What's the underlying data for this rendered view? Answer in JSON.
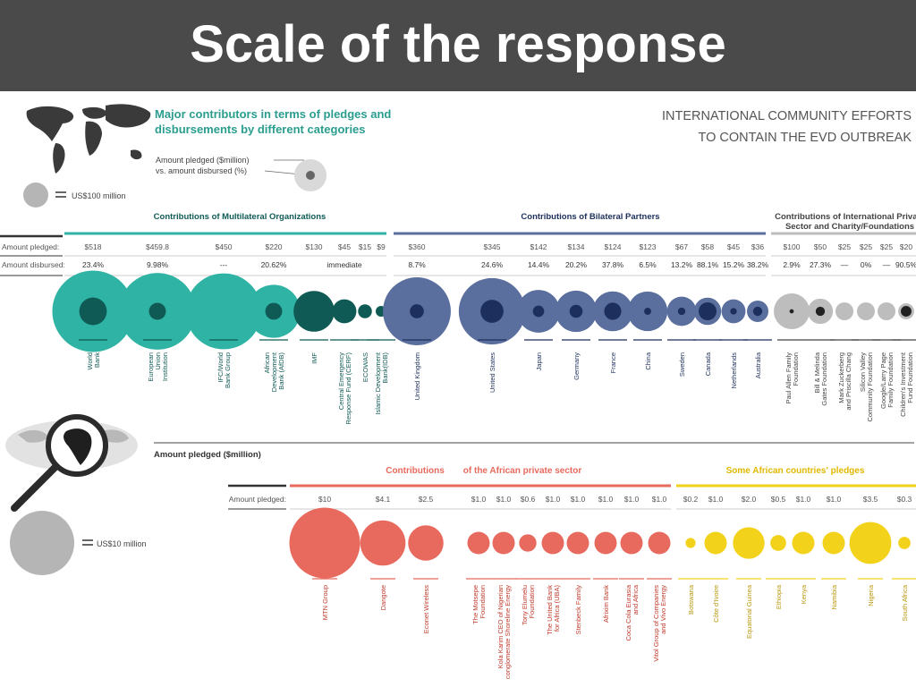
{
  "slide": {
    "title": "Scale of the response"
  },
  "colors": {
    "multilateral": "#2fb3a4",
    "multilateral_dark": "#0f5a55",
    "bilateral": "#5a6f9e",
    "bilateral_dark": "#1d2f5c",
    "private": "#bdbdbd",
    "african_private": "#e86a5e",
    "african_countries": "#f2d21a",
    "grey_label": "#555555"
  },
  "infographic": {
    "header_line1": "INTERNATIONAL COMMUNITY EFFORTS",
    "header_line2": "TO CONTAIN THE EVD OUTBREAK",
    "subtitle_line1": "Major contributors in terms of pledges and",
    "subtitle_line2": "disbursements by different categories",
    "legend_pledged": "Amount pledged ($million)",
    "legend_disbursed": "vs. amount disbursed (%)",
    "scale_top": "US$100 million",
    "scale_bottom": "US$10 million",
    "row_pledged": "Amount pledged:",
    "row_disbursed": "Amount disbursed:",
    "bottom_caption": "Amount pledged ($million)",
    "immediate": "immediate"
  },
  "chart_data": [
    {
      "type": "bubble",
      "title": "Contributions of Multilateral Organizations",
      "categories": [
        "World Bank",
        "European Union Institution",
        "IFC/World Bank Group",
        "African Development Bank (AfDB)",
        "IMF",
        "Central Emergency Response Fund (CERF)",
        "ECOWAS",
        "Islamic Development Bank(IDB)"
      ],
      "category_lines": [
        [
          "World",
          "Bank"
        ],
        [
          "European",
          "Union",
          "Institution"
        ],
        [
          "IFC/World",
          "Bank Group"
        ],
        [
          "African",
          "Development",
          "Bank (AfDB)"
        ],
        [
          "IMF"
        ],
        [
          "Central Emergency",
          "Response Fund (CERF)"
        ],
        [
          "ECOWAS"
        ],
        [
          "Islamic Development",
          "Bank(IDB)"
        ]
      ],
      "pledged_labels": [
        "$518",
        "$459.8",
        "$450",
        "$220",
        "$130",
        "$45",
        "$15",
        "$9"
      ],
      "pledged_musd": [
        518,
        459.8,
        450,
        220,
        130,
        45,
        15,
        9
      ],
      "disbursed_labels": [
        "23.4%",
        "9.98%",
        "---",
        "20.62%",
        "immediate",
        "",
        "",
        ""
      ],
      "disbursed_pct": [
        23.4,
        9.98,
        0,
        20.62,
        100,
        100,
        100,
        100
      ]
    },
    {
      "type": "bubble",
      "title": "Contributions of Bilateral Partners",
      "categories": [
        "United Kingdom",
        "United States",
        "Japan",
        "Germany",
        "France",
        "China",
        "Sweden",
        "Canada",
        "Netherlands",
        "Australia"
      ],
      "category_lines": [
        [
          "United Kingdom"
        ],
        [
          "United States"
        ],
        [
          "Japan"
        ],
        [
          "Germany"
        ],
        [
          "France"
        ],
        [
          "China"
        ],
        [
          "Sweden"
        ],
        [
          "Canada"
        ],
        [
          "Netherlands"
        ],
        [
          "Australia"
        ]
      ],
      "pledged_labels": [
        "$360",
        "$345",
        "$142",
        "$134",
        "$124",
        "$123",
        "$67",
        "$58",
        "$45",
        "$36"
      ],
      "pledged_musd": [
        360,
        345,
        142,
        134,
        124,
        123,
        67,
        58,
        45,
        36
      ],
      "disbursed_labels": [
        "8.7%",
        "24.6%",
        "14.4%",
        "20.2%",
        "37.8%",
        "6.5%",
        "13.2%",
        "88.1%",
        "15.2%",
        "38.2%"
      ],
      "disbursed_pct": [
        8.7,
        24.6,
        14.4,
        20.2,
        37.8,
        6.5,
        13.2,
        88.1,
        15.2,
        38.2
      ]
    },
    {
      "type": "bubble",
      "title_line1": "Contributions of International Private",
      "title_line2": "Sector and Charity/Foundations",
      "categories": [
        "Paul Allen Family Foundation",
        "Bill & Melinda Gates Foundation",
        "Mark Zuckerberg and Priscilla Chang",
        "Silicon Valley Community Foundation",
        "Google/Larry Page Family Foundation",
        "Children's Investment Fund Foundation"
      ],
      "category_lines": [
        [
          "Paul Allen Family",
          "Foundation"
        ],
        [
          "Bill & Melinda",
          "Gates Foundation"
        ],
        [
          "Mark Zuckerberg",
          "and Priscilla Chang"
        ],
        [
          "Silicon Valley",
          "Community Foundation"
        ],
        [
          "Google/Larry Page",
          "Family Foundation"
        ],
        [
          "Children's Investment",
          "Fund Foundation"
        ]
      ],
      "pledged_labels": [
        "$100",
        "$50",
        "$25",
        "$25",
        "$25",
        "$20"
      ],
      "pledged_musd": [
        100,
        50,
        25,
        25,
        25,
        20
      ],
      "disbursed_labels": [
        "2.9%",
        "27.3%",
        "—",
        "0%",
        "—",
        "90.5%"
      ],
      "disbursed_pct": [
        2.9,
        27.3,
        0,
        0,
        0,
        90.5
      ]
    },
    {
      "type": "bubble",
      "title": "Contributions of the African private sector",
      "categories": [
        "MTN Group",
        "Dangote",
        "Econet Wireless",
        "The Motsepe Foundation",
        "Kola Karim CEO of Nigerian conglomerate Shoreline Energy",
        "Tony Elumelu Foundation",
        "The United Bank for Africa (UBA)",
        "Stenbeck Family",
        "Afrixim Bank",
        "Coca Cola Eurasia and Africa",
        "Vitol Group of Companies and Vivo Energy"
      ],
      "category_lines": [
        [
          "MTN Group"
        ],
        [
          "Dangote"
        ],
        [
          "Econet Wireless"
        ],
        [
          "The Motsepe",
          "Foundation"
        ],
        [
          "Kola Karim CEO of Nigerian",
          "conglomerate Shoreline Energy"
        ],
        [
          "Tony Elumelu",
          "Foundation"
        ],
        [
          "The United Bank",
          "for Africa (UBA)"
        ],
        [
          "Stenbeck Family"
        ],
        [
          "Afrixim Bank"
        ],
        [
          "Coca Cola Eurasia",
          "and Africa"
        ],
        [
          "Vitol Group of Companies",
          "and Vivo Energy"
        ]
      ],
      "pledged_labels": [
        "$10",
        "$4.1",
        "$2.5",
        "$1.0",
        "$1.0",
        "$0.6",
        "$1.0",
        "$1.0",
        "$1.0",
        "$1.0",
        "$1.0"
      ],
      "pledged_musd": [
        10,
        4.1,
        2.5,
        1.0,
        1.0,
        0.6,
        1.0,
        1.0,
        1.0,
        1.0,
        1.0
      ]
    },
    {
      "type": "bubble",
      "title": "Some African countries' pledges",
      "categories": [
        "Botswana",
        "Côte d'Ivoire",
        "Equatorial Guinea",
        "Ethiopia",
        "Kenya",
        "Namibia",
        "Nigeria",
        "South Africa"
      ],
      "category_lines": [
        [
          "Botswana"
        ],
        [
          "Côte d'Ivoire"
        ],
        [
          "Equatorial Guinea"
        ],
        [
          "Ethiopia"
        ],
        [
          "Kenya"
        ],
        [
          "Namibia"
        ],
        [
          "Nigeria"
        ],
        [
          "South Africa"
        ]
      ],
      "pledged_labels": [
        "$0.2",
        "$1.0",
        "$2.0",
        "$0.5",
        "$1.0",
        "$1.0",
        "$3.5",
        "$0.3"
      ],
      "pledged_musd": [
        0.2,
        1.0,
        2.0,
        0.5,
        1.0,
        1.0,
        3.5,
        0.3
      ]
    }
  ]
}
